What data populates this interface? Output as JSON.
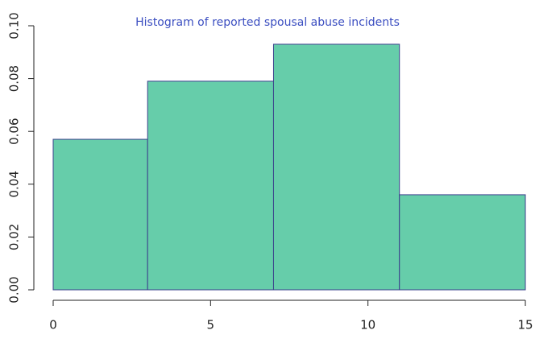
{
  "chart_data": {
    "type": "histogram",
    "title": "Histogram of reported spousal abuse incidents",
    "bins": [
      0,
      3,
      7,
      11,
      15
    ],
    "values": [
      0.057,
      0.079,
      0.093,
      0.036
    ],
    "color": "#66cdaa",
    "edge_color": "#3b3f8c",
    "title_color": "#3c4fc1",
    "xlim": [
      0,
      15
    ],
    "xticks": [
      0,
      5,
      10,
      15
    ],
    "ylim": [
      0,
      0.1
    ],
    "yticks": [
      {
        "value": 0,
        "label": "0.00"
      },
      {
        "value": 0.02,
        "label": "0.02"
      },
      {
        "value": 0.04,
        "label": "0.04"
      },
      {
        "value": 0.06,
        "label": "0.06"
      },
      {
        "value": 0.08,
        "label": "0.08"
      },
      {
        "value": 0.1,
        "label": "0.10"
      }
    ]
  }
}
